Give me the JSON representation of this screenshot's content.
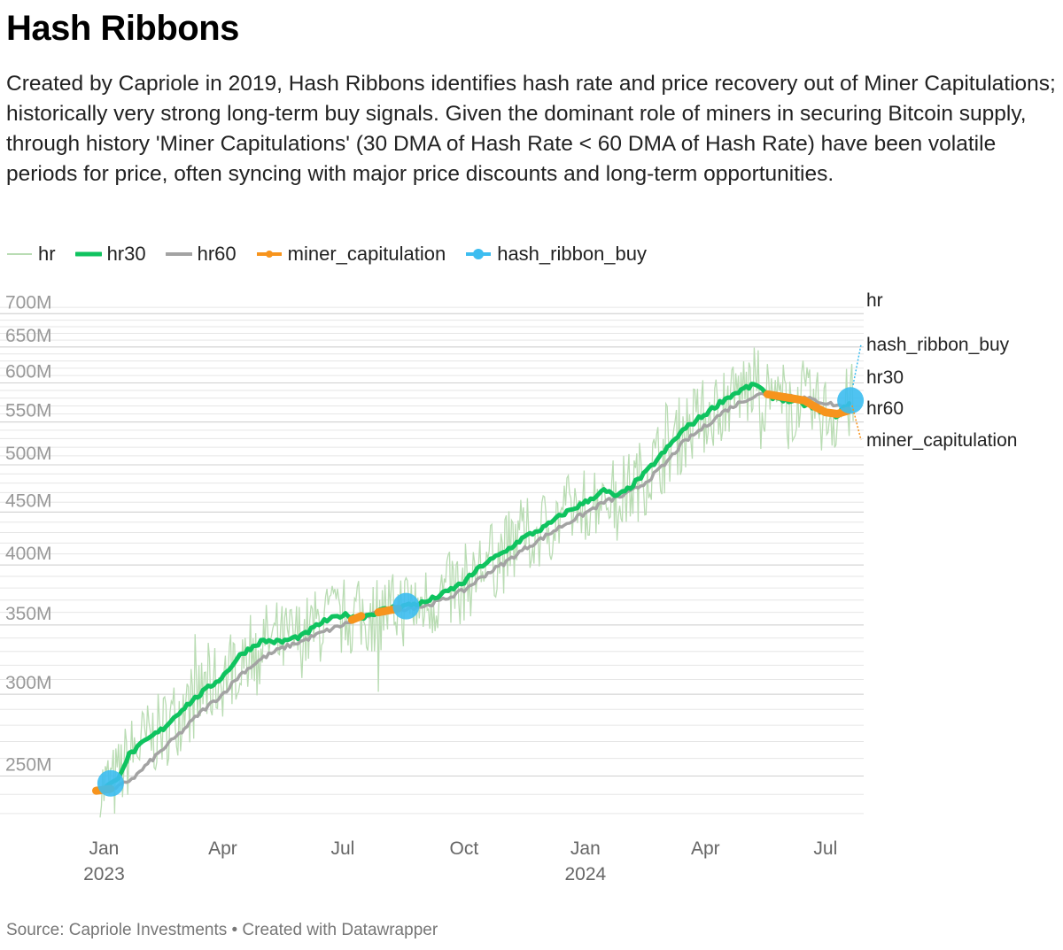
{
  "title": "Hash Ribbons",
  "description": "Created by Capriole in 2019, Hash Ribbons identifies hash rate and price recovery out of Miner Capitulations; historically very strong long-term buy signals. Given the dominant role of miners in securing Bitcoin supply, through history 'Miner Capitulations' (30 DMA of Hash Rate < 60 DMA of Hash Rate) have been volatile periods for price, often syncing with major price discounts and long-term opportunities.",
  "source": "Source: Capriole Investments • Created with Datawrapper",
  "legend": [
    {
      "key": "hr",
      "label": "hr",
      "color": "#b9dcb3"
    },
    {
      "key": "hr30",
      "label": "hr30",
      "color": "#0fc35f"
    },
    {
      "key": "hr60",
      "label": "hr60",
      "color": "#a3a3a3"
    },
    {
      "key": "miner_capitulation",
      "label": "miner_capitulation",
      "color": "#f7941d"
    },
    {
      "key": "hash_ribbon_buy",
      "label": "hash_ribbon_buy",
      "color": "#3cbdf0"
    }
  ],
  "chart_data": {
    "type": "line",
    "y_scale": "log",
    "ylim": [
      225000000,
      720000000
    ],
    "y_ticks": [
      {
        "value": 250000000,
        "label": "250M"
      },
      {
        "value": 300000000,
        "label": "300M"
      },
      {
        "value": 350000000,
        "label": "350M"
      },
      {
        "value": 400000000,
        "label": "400M"
      },
      {
        "value": 450000000,
        "label": "450M"
      },
      {
        "value": 500000000,
        "label": "500M"
      },
      {
        "value": 550000000,
        "label": "550M"
      },
      {
        "value": 600000000,
        "label": "600M"
      },
      {
        "value": 650000000,
        "label": "650M"
      },
      {
        "value": 700000000,
        "label": "700M"
      }
    ],
    "x_range": [
      "2022-12-27",
      "2024-07-30"
    ],
    "x_ticks": [
      {
        "date": "2023-01-01",
        "label": "Jan",
        "sublabel": "2023"
      },
      {
        "date": "2023-04-01",
        "label": "Apr",
        "sublabel": ""
      },
      {
        "date": "2023-07-01",
        "label": "Jul",
        "sublabel": ""
      },
      {
        "date": "2023-10-01",
        "label": "Oct",
        "sublabel": ""
      },
      {
        "date": "2024-01-01",
        "label": "Jan",
        "sublabel": "2024"
      },
      {
        "date": "2024-04-01",
        "label": "Apr",
        "sublabel": ""
      },
      {
        "date": "2024-07-01",
        "label": "Jul",
        "sublabel": ""
      }
    ],
    "series": [
      {
        "name": "hr30",
        "points": [
          [
            "2022-12-29",
            243000000.0
          ],
          [
            "2023-01-10",
            247000000.0
          ],
          [
            "2023-01-20",
            262000000.0
          ],
          [
            "2023-02-01",
            270000000.0
          ],
          [
            "2023-02-15",
            278000000.0
          ],
          [
            "2023-03-01",
            290000000.0
          ],
          [
            "2023-03-15",
            300000000.0
          ],
          [
            "2023-04-01",
            312000000.0
          ],
          [
            "2023-04-15",
            328000000.0
          ],
          [
            "2023-05-01",
            338000000.0
          ],
          [
            "2023-05-15",
            337000000.0
          ],
          [
            "2023-06-01",
            342000000.0
          ],
          [
            "2023-06-15",
            352000000.0
          ],
          [
            "2023-07-01",
            358000000.0
          ],
          [
            "2023-07-15",
            356000000.0
          ],
          [
            "2023-08-01",
            362000000.0
          ],
          [
            "2023-08-15",
            365000000.0
          ],
          [
            "2023-09-01",
            368000000.0
          ],
          [
            "2023-09-15",
            375000000.0
          ],
          [
            "2023-10-01",
            385000000.0
          ],
          [
            "2023-10-15",
            400000000.0
          ],
          [
            "2023-11-01",
            412000000.0
          ],
          [
            "2023-11-15",
            425000000.0
          ],
          [
            "2023-12-01",
            435000000.0
          ],
          [
            "2023-12-15",
            448000000.0
          ],
          [
            "2024-01-01",
            460000000.0
          ],
          [
            "2024-01-15",
            472000000.0
          ],
          [
            "2024-01-25",
            466000000.0
          ],
          [
            "2024-02-01",
            472000000.0
          ],
          [
            "2024-02-15",
            490000000.0
          ],
          [
            "2024-03-01",
            515000000.0
          ],
          [
            "2024-03-15",
            540000000.0
          ],
          [
            "2024-04-01",
            560000000.0
          ],
          [
            "2024-04-15",
            578000000.0
          ],
          [
            "2024-05-01",
            593000000.0
          ],
          [
            "2024-05-10",
            598000000.0
          ],
          [
            "2024-05-18",
            583000000.0
          ],
          [
            "2024-06-01",
            578000000.0
          ],
          [
            "2024-06-15",
            572000000.0
          ],
          [
            "2024-07-01",
            562000000.0
          ],
          [
            "2024-07-10",
            558000000.0
          ],
          [
            "2024-07-20",
            576000000.0
          ]
        ]
      },
      {
        "name": "hr60",
        "points": [
          [
            "2023-01-10",
            243000000.0
          ],
          [
            "2023-01-25",
            250000000.0
          ],
          [
            "2023-02-10",
            262000000.0
          ],
          [
            "2023-03-01",
            276000000.0
          ],
          [
            "2023-03-15",
            288000000.0
          ],
          [
            "2023-04-01",
            300000000.0
          ],
          [
            "2023-04-15",
            314000000.0
          ],
          [
            "2023-05-01",
            325000000.0
          ],
          [
            "2023-05-15",
            332000000.0
          ],
          [
            "2023-06-01",
            338000000.0
          ],
          [
            "2023-06-15",
            344000000.0
          ],
          [
            "2023-07-01",
            350000000.0
          ],
          [
            "2023-07-15",
            356000000.0
          ],
          [
            "2023-08-01",
            360000000.0
          ],
          [
            "2023-08-15",
            363000000.0
          ],
          [
            "2023-09-01",
            365000000.0
          ],
          [
            "2023-09-15",
            370000000.0
          ],
          [
            "2023-10-01",
            378000000.0
          ],
          [
            "2023-10-15",
            390000000.0
          ],
          [
            "2023-11-01",
            402000000.0
          ],
          [
            "2023-11-15",
            414000000.0
          ],
          [
            "2023-12-01",
            426000000.0
          ],
          [
            "2023-12-15",
            437000000.0
          ],
          [
            "2024-01-01",
            449000000.0
          ],
          [
            "2024-01-15",
            460000000.0
          ],
          [
            "2024-02-01",
            468000000.0
          ],
          [
            "2024-02-15",
            480000000.0
          ],
          [
            "2024-03-01",
            500000000.0
          ],
          [
            "2024-03-15",
            525000000.0
          ],
          [
            "2024-04-01",
            545000000.0
          ],
          [
            "2024-04-15",
            563000000.0
          ],
          [
            "2024-05-01",
            578000000.0
          ],
          [
            "2024-05-15",
            586000000.0
          ],
          [
            "2024-06-01",
            584000000.0
          ],
          [
            "2024-06-15",
            580000000.0
          ],
          [
            "2024-07-01",
            574000000.0
          ],
          [
            "2024-07-20",
            567000000.0
          ]
        ]
      },
      {
        "name": "miner_capitulation",
        "segments": [
          [
            [
              "2022-12-26",
              242000000.0
            ],
            [
              "2023-01-06",
              243000000.0
            ]
          ],
          [
            [
              "2023-07-08",
              354000000.0
            ],
            [
              "2023-07-15",
              357000000.0
            ]
          ],
          [
            [
              "2023-07-28",
              360000000.0
            ],
            [
              "2023-08-12",
              363000000.0
            ]
          ],
          [
            [
              "2024-05-18",
              585000000.0
            ],
            [
              "2024-06-01",
              581000000.0
            ],
            [
              "2024-06-15",
              577000000.0
            ],
            [
              "2024-06-22",
              570000000.0
            ],
            [
              "2024-07-01",
              562000000.0
            ],
            [
              "2024-07-10",
              560000000.0
            ],
            [
              "2024-07-18",
              564000000.0
            ]
          ]
        ]
      },
      {
        "name": "hash_ribbon_buy",
        "points": [
          [
            "2023-01-06",
            246000000.0
          ],
          [
            "2023-08-18",
            365000000.0
          ],
          [
            "2024-07-20",
            577000000.0
          ]
        ]
      }
    ],
    "end_labels": [
      {
        "series": "hr",
        "label": "hr"
      },
      {
        "series": "hash_ribbon_buy",
        "label": "hash_ribbon_buy"
      },
      {
        "series": "hr30",
        "label": "hr30"
      },
      {
        "series": "hr60",
        "label": "hr60"
      },
      {
        "series": "miner_capitulation",
        "label": "miner_capitulation"
      }
    ]
  }
}
